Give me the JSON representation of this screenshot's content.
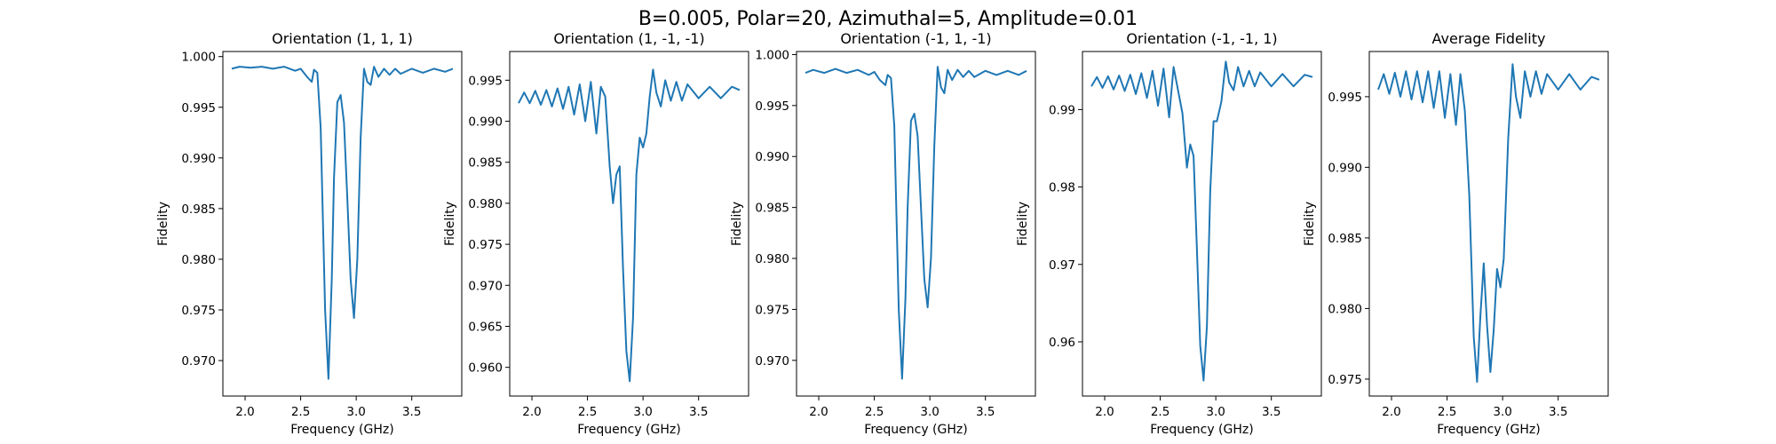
{
  "figure": {
    "suptitle": "B=0.005, Polar=20, Azimuthal=5, Amplitude=0.01"
  },
  "chart_data": [
    {
      "type": "line",
      "title": "Orientation (1, 1, 1)",
      "xlabel": "Frequency (GHz)",
      "ylabel": "Fidelity",
      "xlim": [
        1.8,
        3.95
      ],
      "ylim": [
        0.9665,
        1.0005
      ],
      "xticks": [
        "2.0",
        "2.5",
        "3.0",
        "3.5"
      ],
      "yticks": [
        "0.970",
        "0.975",
        "0.980",
        "0.985",
        "0.990",
        "0.995",
        "1.000"
      ],
      "series": [
        {
          "color": "#1f77b4",
          "x": [
            1.88,
            1.95,
            2.05,
            2.15,
            2.25,
            2.35,
            2.45,
            2.5,
            2.55,
            2.6,
            2.62,
            2.65,
            2.68,
            2.72,
            2.75,
            2.78,
            2.8,
            2.83,
            2.86,
            2.89,
            2.92,
            2.95,
            2.98,
            3.01,
            3.04,
            3.07,
            3.1,
            3.13,
            3.16,
            3.2,
            3.25,
            3.3,
            3.35,
            3.4,
            3.5,
            3.6,
            3.7,
            3.8,
            3.87
          ],
          "y": [
            0.9988,
            0.999,
            0.9989,
            0.999,
            0.9988,
            0.999,
            0.9986,
            0.9988,
            0.9981,
            0.9975,
            0.9987,
            0.9984,
            0.993,
            0.975,
            0.9682,
            0.978,
            0.988,
            0.9955,
            0.9962,
            0.9935,
            0.986,
            0.978,
            0.9742,
            0.98,
            0.992,
            0.9988,
            0.9975,
            0.9972,
            0.999,
            0.998,
            0.9988,
            0.9982,
            0.9988,
            0.9983,
            0.9988,
            0.9984,
            0.9988,
            0.9985,
            0.9988
          ]
        }
      ]
    },
    {
      "type": "line",
      "title": "Orientation (1, -1, -1)",
      "xlabel": "Frequency (GHz)",
      "ylabel": "Fidelity",
      "xlim": [
        1.8,
        3.95
      ],
      "ylim": [
        0.9565,
        0.9985
      ],
      "xticks": [
        "2.0",
        "2.5",
        "3.0",
        "3.5"
      ],
      "yticks": [
        "0.960",
        "0.965",
        "0.970",
        "0.975",
        "0.980",
        "0.985",
        "0.990",
        "0.995"
      ],
      "series": [
        {
          "color": "#1f77b4",
          "x": [
            1.88,
            1.93,
            1.98,
            2.03,
            2.08,
            2.13,
            2.18,
            2.23,
            2.28,
            2.33,
            2.38,
            2.43,
            2.48,
            2.53,
            2.58,
            2.62,
            2.66,
            2.7,
            2.73,
            2.76,
            2.79,
            2.82,
            2.85,
            2.88,
            2.91,
            2.94,
            2.97,
            3.0,
            3.03,
            3.06,
            3.09,
            3.12,
            3.16,
            3.2,
            3.25,
            3.3,
            3.35,
            3.4,
            3.5,
            3.6,
            3.7,
            3.8,
            3.87
          ],
          "y": [
            0.9922,
            0.9935,
            0.9922,
            0.9937,
            0.992,
            0.9938,
            0.9918,
            0.994,
            0.9915,
            0.9942,
            0.9908,
            0.9945,
            0.99,
            0.9948,
            0.9885,
            0.9942,
            0.993,
            0.9845,
            0.98,
            0.9835,
            0.9845,
            0.972,
            0.962,
            0.9583,
            0.966,
            0.9835,
            0.988,
            0.9868,
            0.9885,
            0.993,
            0.9963,
            0.9935,
            0.9918,
            0.995,
            0.9925,
            0.9948,
            0.9925,
            0.9945,
            0.9928,
            0.9942,
            0.9928,
            0.9942,
            0.9938
          ]
        }
      ]
    },
    {
      "type": "line",
      "title": "Orientation (-1, 1, -1)",
      "xlabel": "Frequency (GHz)",
      "ylabel": "Fidelity",
      "xlim": [
        1.8,
        3.95
      ],
      "ylim": [
        0.9665,
        1.0003
      ],
      "xticks": [
        "2.0",
        "2.5",
        "3.0",
        "3.5"
      ],
      "yticks": [
        "0.970",
        "0.975",
        "0.980",
        "0.985",
        "0.990",
        "0.995",
        "1.000"
      ],
      "series": [
        {
          "color": "#1f77b4",
          "x": [
            1.88,
            1.95,
            2.05,
            2.15,
            2.25,
            2.35,
            2.45,
            2.5,
            2.55,
            2.6,
            2.62,
            2.65,
            2.68,
            2.72,
            2.75,
            2.78,
            2.8,
            2.83,
            2.86,
            2.89,
            2.92,
            2.95,
            2.98,
            3.01,
            3.04,
            3.07,
            3.1,
            3.13,
            3.16,
            3.2,
            3.25,
            3.3,
            3.35,
            3.4,
            3.5,
            3.6,
            3.7,
            3.8,
            3.87
          ],
          "y": [
            0.9982,
            0.9985,
            0.9982,
            0.9986,
            0.9982,
            0.9985,
            0.998,
            0.9983,
            0.9975,
            0.997,
            0.998,
            0.9977,
            0.993,
            0.975,
            0.9682,
            0.976,
            0.985,
            0.9935,
            0.9942,
            0.992,
            0.985,
            0.978,
            0.9752,
            0.98,
            0.991,
            0.9988,
            0.9968,
            0.9962,
            0.9985,
            0.9975,
            0.9985,
            0.9978,
            0.9984,
            0.9978,
            0.9984,
            0.998,
            0.9984,
            0.998,
            0.9984
          ]
        }
      ]
    },
    {
      "type": "line",
      "title": "Orientation (-1, -1, 1)",
      "xlabel": "Frequency (GHz)",
      "ylabel": "Fidelity",
      "xlim": [
        1.8,
        3.95
      ],
      "ylim": [
        0.953,
        0.9975
      ],
      "xticks": [
        "2.0",
        "2.5",
        "3.0",
        "3.5"
      ],
      "yticks": [
        "0.96",
        "0.97",
        "0.98",
        "0.99"
      ],
      "series": [
        {
          "color": "#1f77b4",
          "x": [
            1.88,
            1.93,
            1.98,
            2.03,
            2.08,
            2.13,
            2.18,
            2.23,
            2.28,
            2.33,
            2.38,
            2.43,
            2.48,
            2.53,
            2.58,
            2.62,
            2.66,
            2.7,
            2.74,
            2.77,
            2.8,
            2.83,
            2.86,
            2.89,
            2.92,
            2.95,
            2.98,
            3.01,
            3.05,
            3.09,
            3.12,
            3.16,
            3.2,
            3.25,
            3.3,
            3.35,
            3.4,
            3.5,
            3.6,
            3.7,
            3.8,
            3.87
          ],
          "y": [
            0.993,
            0.9942,
            0.9928,
            0.9943,
            0.9926,
            0.9944,
            0.9924,
            0.9945,
            0.992,
            0.9947,
            0.9915,
            0.995,
            0.9905,
            0.9953,
            0.989,
            0.9955,
            0.9925,
            0.9895,
            0.9825,
            0.9855,
            0.984,
            0.972,
            0.9595,
            0.955,
            0.962,
            0.9795,
            0.9885,
            0.9885,
            0.991,
            0.9962,
            0.9935,
            0.9925,
            0.9955,
            0.993,
            0.995,
            0.993,
            0.9948,
            0.993,
            0.9946,
            0.993,
            0.9945,
            0.9942
          ]
        }
      ]
    },
    {
      "type": "line",
      "title": "Average Fidelity",
      "xlabel": "Frequency (GHz)",
      "ylabel": "Fidelity",
      "xlim": [
        1.8,
        3.95
      ],
      "ylim": [
        0.9738,
        0.9982
      ],
      "xticks": [
        "2.0",
        "2.5",
        "3.0",
        "3.5"
      ],
      "yticks": [
        "0.975",
        "0.980",
        "0.985",
        "0.990",
        "0.995"
      ],
      "series": [
        {
          "color": "#1f77b4",
          "x": [
            1.88,
            1.93,
            1.98,
            2.03,
            2.08,
            2.13,
            2.18,
            2.23,
            2.28,
            2.33,
            2.38,
            2.43,
            2.48,
            2.53,
            2.58,
            2.62,
            2.66,
            2.7,
            2.74,
            2.77,
            2.8,
            2.83,
            2.86,
            2.89,
            2.92,
            2.95,
            2.98,
            3.01,
            3.05,
            3.09,
            3.12,
            3.16,
            3.2,
            3.25,
            3.3,
            3.35,
            3.4,
            3.5,
            3.6,
            3.7,
            3.8,
            3.87
          ],
          "y": [
            0.9955,
            0.9966,
            0.9952,
            0.9967,
            0.995,
            0.9968,
            0.9948,
            0.9968,
            0.9946,
            0.9968,
            0.9942,
            0.9968,
            0.9935,
            0.9966,
            0.993,
            0.9966,
            0.994,
            0.988,
            0.978,
            0.9748,
            0.9795,
            0.9832,
            0.9788,
            0.9755,
            0.9785,
            0.9828,
            0.9815,
            0.9835,
            0.992,
            0.9973,
            0.995,
            0.9935,
            0.9968,
            0.995,
            0.9968,
            0.9952,
            0.9966,
            0.9955,
            0.9966,
            0.9955,
            0.9964,
            0.9962
          ]
        }
      ]
    }
  ]
}
